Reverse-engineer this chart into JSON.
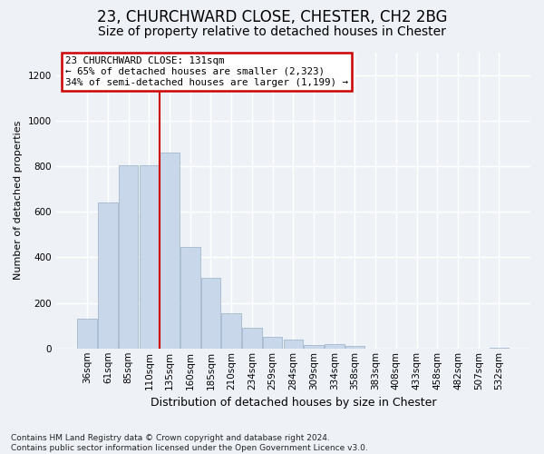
{
  "title1": "23, CHURCHWARD CLOSE, CHESTER, CH2 2BG",
  "title2": "Size of property relative to detached houses in Chester",
  "xlabel": "Distribution of detached houses by size in Chester",
  "ylabel": "Number of detached properties",
  "footnote": "Contains HM Land Registry data © Crown copyright and database right 2024.\nContains public sector information licensed under the Open Government Licence v3.0.",
  "bar_labels": [
    "36sqm",
    "61sqm",
    "85sqm",
    "110sqm",
    "135sqm",
    "160sqm",
    "185sqm",
    "210sqm",
    "234sqm",
    "259sqm",
    "284sqm",
    "309sqm",
    "334sqm",
    "358sqm",
    "383sqm",
    "408sqm",
    "433sqm",
    "458sqm",
    "482sqm",
    "507sqm",
    "532sqm"
  ],
  "bar_values": [
    130,
    640,
    805,
    805,
    860,
    445,
    308,
    155,
    90,
    50,
    38,
    15,
    20,
    10,
    0,
    0,
    0,
    0,
    0,
    0,
    5
  ],
  "bar_color": "#c8d8ea",
  "bar_edge_color": "#aabdd0",
  "property_line_label": "23 CHURCHWARD CLOSE: 131sqm",
  "annotation_line1": "← 65% of detached houses are smaller (2,323)",
  "annotation_line2": "34% of semi-detached houses are larger (1,199) →",
  "annotation_box_color": "#ffffff",
  "annotation_box_edge": "#cc0000",
  "line_color": "#cc0000",
  "property_line_bin": 4,
  "ylim": [
    0,
    1300
  ],
  "yticks": [
    0,
    200,
    400,
    600,
    800,
    1000,
    1200
  ],
  "background_color": "#eef2f7",
  "plot_bg_color": "#eef2f7",
  "grid_color": "#ffffff",
  "title1_fontsize": 12,
  "title2_fontsize": 10,
  "xlabel_fontsize": 9,
  "ylabel_fontsize": 8,
  "tick_fontsize": 7.5,
  "footnote_fontsize": 6.5
}
